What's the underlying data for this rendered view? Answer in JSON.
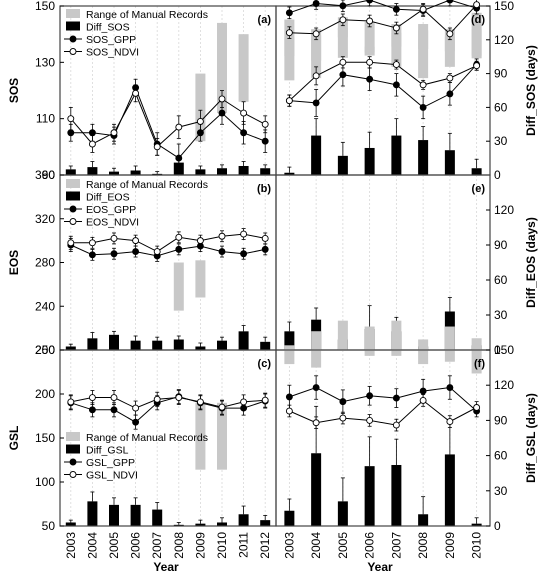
{
  "colors": {
    "range": "#c8c8c8",
    "diff": "#000000",
    "gpp": "#000000",
    "ndvi": "#ffffff",
    "grid": "#d8d8d8"
  },
  "chart_data": [
    {
      "id": "a",
      "panel_label": "(a)",
      "type": "line+bar",
      "ylabel": "SOS",
      "ylim": [
        90,
        150
      ],
      "yticks": [
        90,
        110,
        130,
        150
      ],
      "y2label": "",
      "y2lim": [
        0,
        150
      ],
      "y2ticks": [],
      "x": [
        2003,
        2004,
        2005,
        2006,
        2007,
        2008,
        2009,
        2010,
        2011,
        2012
      ],
      "xticklabels": [
        "",
        "",
        "",
        "",
        "",
        "",
        "",
        "",
        "",
        ""
      ],
      "legend": [
        "Range of Manual Records",
        "Diff_SOS",
        "SOS_GPP",
        "SOS_NDVI"
      ],
      "range": [
        null,
        null,
        null,
        null,
        null,
        null,
        [
          102,
          126
        ],
        [
          112,
          144
        ],
        [
          116,
          140
        ],
        null
      ],
      "diff": [
        5,
        7,
        3,
        4,
        1,
        11,
        5,
        6,
        8,
        6
      ],
      "diff_err": [
        3,
        5,
        3,
        4,
        2,
        3,
        3,
        3,
        4,
        3
      ],
      "gpp": [
        105,
        105,
        104,
        121,
        101,
        96,
        105,
        112,
        105,
        102
      ],
      "gpp_err": [
        3,
        3,
        3,
        3,
        4,
        5,
        3,
        4,
        4,
        4
      ],
      "ndvi": [
        110,
        101,
        105,
        119,
        100,
        107,
        109,
        117,
        112,
        108
      ],
      "ndvi_err": [
        4,
        3,
        3,
        3,
        3,
        4,
        4,
        3,
        4,
        3
      ]
    },
    {
      "id": "d",
      "panel_label": "(d)",
      "type": "line+bar",
      "ylabel": "",
      "ylim": [
        90,
        150
      ],
      "yticks": [],
      "y2label": "Diff_SOS (days)",
      "y2lim": [
        0,
        150
      ],
      "y2ticks": [
        0,
        30,
        60,
        90,
        120,
        150
      ],
      "x": [
        2003,
        2004,
        2005,
        2006,
        2007,
        2008,
        2009,
        2010
      ],
      "xticklabels": [
        "",
        "",
        "",
        "",
        "",
        "",
        "",
        ""
      ],
      "range": [
        [
          84,
          138
        ],
        [
          86,
          124
        ],
        [
          104,
          140
        ],
        [
          106,
          136
        ],
        [
          96,
          134
        ],
        [
          86,
          134
        ],
        [
          96,
          123
        ],
        [
          106,
          144
        ]
      ],
      "diff": [
        2,
        35,
        17,
        24,
        35,
        31,
        22,
        6
      ],
      "diff_err": [
        5,
        15,
        12,
        14,
        15,
        12,
        15,
        8
      ],
      "gpp": [
        66,
        64,
        89,
        85,
        80,
        60,
        72,
        98
      ],
      "gpp_err": [
        5,
        12,
        10,
        10,
        10,
        10,
        10,
        5
      ],
      "ndvi": [
        66,
        88,
        100,
        100,
        98,
        80,
        86,
        97
      ],
      "ndvi_err": [
        5,
        8,
        5,
        5,
        4,
        4,
        4,
        4
      ]
    },
    {
      "id": "b",
      "panel_label": "(b)",
      "type": "line+bar",
      "ylabel": "EOS",
      "ylim": [
        200,
        360
      ],
      "yticks": [
        200,
        240,
        280,
        320,
        360
      ],
      "y2label": "",
      "y2lim": [
        0,
        150
      ],
      "y2ticks": [],
      "x": [
        2003,
        2004,
        2005,
        2006,
        2007,
        2008,
        2009,
        2010,
        2011,
        2012
      ],
      "xticklabels": [
        "",
        "",
        "",
        "",
        "",
        "",
        "",
        "",
        "",
        ""
      ],
      "legend": [
        "Range of Manual Records",
        "Diff_EOS",
        "EOS_GPP",
        "EOS_NDVI"
      ],
      "range": [
        null,
        null,
        null,
        null,
        null,
        [
          236,
          280
        ],
        [
          248,
          282
        ],
        null,
        null,
        null
      ],
      "diff": [
        3,
        10,
        13,
        8,
        8,
        9,
        3,
        8,
        16,
        7
      ],
      "diff_err": [
        2,
        5,
        3,
        4,
        3,
        3,
        3,
        3,
        5,
        4
      ],
      "gpp": [
        296,
        287,
        288,
        290,
        286,
        292,
        295,
        290,
        288,
        292
      ],
      "gpp_err": [
        6,
        5,
        5,
        5,
        5,
        5,
        5,
        5,
        5,
        5
      ],
      "ndvi": [
        298,
        298,
        302,
        300,
        290,
        303,
        300,
        304,
        306,
        302
      ],
      "ndvi_err": [
        6,
        5,
        5,
        5,
        5,
        5,
        5,
        5,
        5,
        5
      ]
    },
    {
      "id": "e",
      "panel_label": "(e)",
      "type": "line+bar",
      "ylabel": "",
      "ylim": [
        200,
        360
      ],
      "yticks": [],
      "y2label": "Diff_EOS (days)",
      "y2lim": [
        0,
        150
      ],
      "y2ticks": [
        0,
        30,
        60,
        90,
        120
      ],
      "x": [
        2003,
        2004,
        2005,
        2006,
        2007,
        2008,
        2009,
        2010
      ],
      "xticklabels": [
        "",
        "",
        "",
        "",
        "",
        "",
        "",
        ""
      ],
      "range": [
        [
          252,
          268
        ],
        [
          248,
          275
        ],
        [
          268,
          276
        ],
        [
          255,
          260
        ],
        [
          260,
          272
        ],
        [
          258,
          274
        ],
        [
          256,
          275
        ],
        [
          250,
          275
        ]
      ],
      "diff": [
        16,
        26,
        9,
        18,
        16,
        3,
        33,
        4
      ],
      "diff_err": [
        8,
        10,
        15,
        20,
        12,
        3,
        12,
        4
      ],
      "gpp": [
        289,
        297,
        295,
        300,
        292,
        291,
        300,
        293
      ],
      "gpp_err": [
        5,
        5,
        5,
        5,
        5,
        5,
        5,
        5
      ],
      "ndvi": [
        272,
        271,
        283,
        282,
        276,
        292,
        271,
        296
      ],
      "ndvi_err": [
        5,
        5,
        5,
        5,
        5,
        5,
        5,
        5
      ]
    },
    {
      "id": "c",
      "panel_label": "(c)",
      "type": "line+bar",
      "ylabel": "GSL",
      "ylim": [
        50,
        250
      ],
      "yticks": [
        50,
        100,
        150,
        200,
        250
      ],
      "y2label": "",
      "y2lim": [
        0,
        150
      ],
      "y2ticks": [],
      "x": [
        2003,
        2004,
        2005,
        2006,
        2007,
        2008,
        2009,
        2010,
        2011,
        2012
      ],
      "xticklabels": [
        "2003",
        "2004",
        "2005",
        "2006",
        "2007",
        "2008",
        "2009",
        "2010",
        "2011",
        "2012"
      ],
      "xlabel": "Year",
      "legend": [
        "Range of Manual Records",
        "Diff_GSL",
        "GSL_GPP",
        "GSL_NDVI"
      ],
      "range": [
        null,
        null,
        null,
        null,
        null,
        null,
        [
          114,
          190
        ],
        [
          114,
          190
        ],
        null,
        null
      ],
      "diff": [
        3,
        21,
        18,
        18,
        14,
        1,
        2,
        3,
        10,
        5
      ],
      "diff_err": [
        2,
        8,
        6,
        6,
        6,
        2,
        3,
        4,
        7,
        4
      ],
      "gpp": [
        190,
        182,
        182,
        168,
        190,
        197,
        190,
        184,
        184,
        192
      ],
      "gpp_err": [
        8,
        8,
        8,
        8,
        8,
        8,
        8,
        8,
        8,
        8
      ],
      "ndvi": [
        191,
        196,
        196,
        184,
        194,
        196,
        191,
        185,
        191,
        193
      ],
      "ndvi_err": [
        8,
        8,
        8,
        8,
        8,
        8,
        8,
        8,
        8,
        8
      ]
    },
    {
      "id": "f",
      "panel_label": "(f)",
      "type": "line+bar",
      "ylabel": "",
      "ylim": [
        50,
        250
      ],
      "yticks": [],
      "y2label": "Diff_GSL (days)",
      "y2lim": [
        0,
        150
      ],
      "y2ticks": [
        0,
        30,
        60,
        90,
        120,
        150
      ],
      "x": [
        2003,
        2004,
        2005,
        2006,
        2007,
        2008,
        2009,
        2010
      ],
      "xticklabels": [
        "2003",
        "2004",
        "2005",
        "2006",
        "2007",
        "2008",
        "2009",
        "2010"
      ],
      "xlabel": "Year",
      "range": [
        [
          138,
          154
        ],
        [
          135,
          166
        ],
        [
          150,
          175
        ],
        [
          145,
          170
        ],
        [
          145,
          175
        ],
        [
          138,
          159
        ],
        [
          140,
          170
        ],
        [
          130,
          160
        ]
      ],
      "diff": [
        13,
        62,
        21,
        51,
        52,
        10,
        61,
        2
      ],
      "diff_err": [
        10,
        40,
        20,
        25,
        22,
        15,
        30,
        5
      ],
      "gpp": [
        110,
        118,
        106,
        111,
        109,
        115,
        118,
        98
      ],
      "gpp_err": [
        10,
        10,
        10,
        8,
        8,
        10,
        10,
        5
      ],
      "ndvi": [
        98,
        88,
        92,
        90,
        86,
        107,
        89,
        101
      ],
      "ndvi_err": [
        5,
        5,
        5,
        5,
        5,
        5,
        5,
        5
      ]
    }
  ]
}
